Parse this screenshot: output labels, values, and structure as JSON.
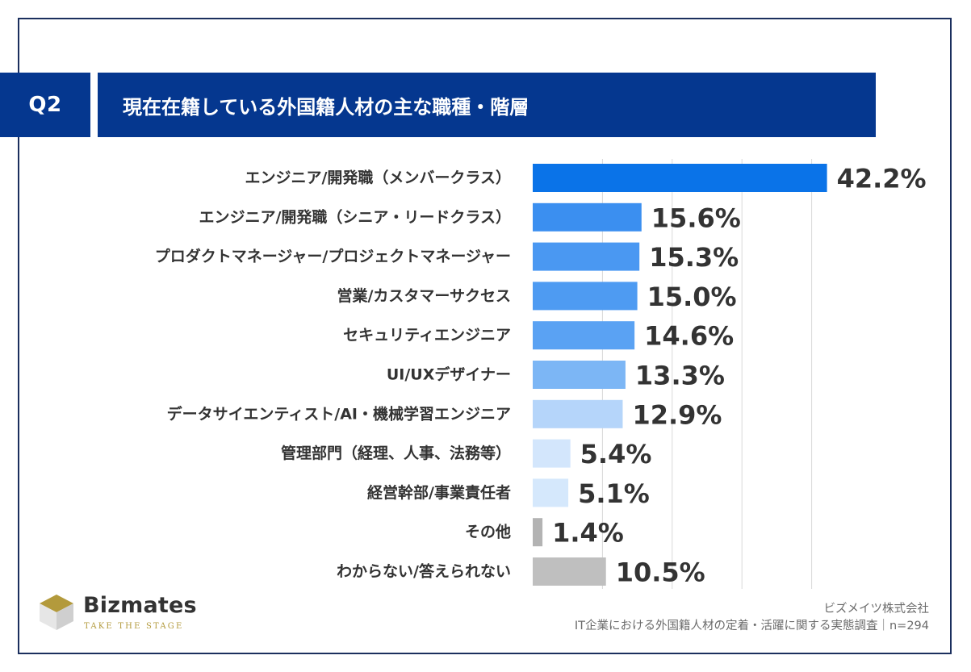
{
  "question": {
    "label": "Q2",
    "title": "現在在籍している外国籍人材の主な職種・階層"
  },
  "chart_data": {
    "type": "bar",
    "orientation": "horizontal",
    "unit": "%",
    "xlim": [
      0,
      50
    ],
    "grid": true,
    "categories": [
      "エンジニア/開発職（メンバークラス）",
      "エンジニア/開発職（シニア・リードクラス）",
      "プロダクトマネージャー/プロジェクトマネージャー",
      "営業/カスタマーサクセス",
      "セキュリティエンジニア",
      "UI/UXデザイナー",
      "データサイエンティスト/AI・機械学習エンジニア",
      "管理部門（経理、人事、法務等）",
      "経営幹部/事業責任者",
      "その他",
      "わからない/答えられない"
    ],
    "values": [
      42.2,
      15.6,
      15.3,
      15.0,
      14.6,
      13.3,
      12.9,
      5.4,
      5.1,
      1.4,
      10.5
    ],
    "value_labels": [
      "42.2%",
      "15.6%",
      "15.3%",
      "15.0%",
      "14.6%",
      "13.3%",
      "12.9%",
      "5.4%",
      "5.1%",
      "1.4%",
      "10.5%"
    ],
    "colors": [
      "#0a73e8",
      "#3b8ff0",
      "#4a98f2",
      "#4e9bf2",
      "#5aa2f3",
      "#7cb6f5",
      "#b5d5fa",
      "#d3e6fc",
      "#d5e8fc",
      "#b3b3b3",
      "#bfbfbf"
    ]
  },
  "brand": {
    "name": "Bizmates",
    "tagline": "TAKE THE STAGE"
  },
  "source": {
    "company": "ビズメイツ株式会社",
    "survey": "IT企業における外国籍人材の定着・活躍に関する実態調査｜n=294"
  }
}
